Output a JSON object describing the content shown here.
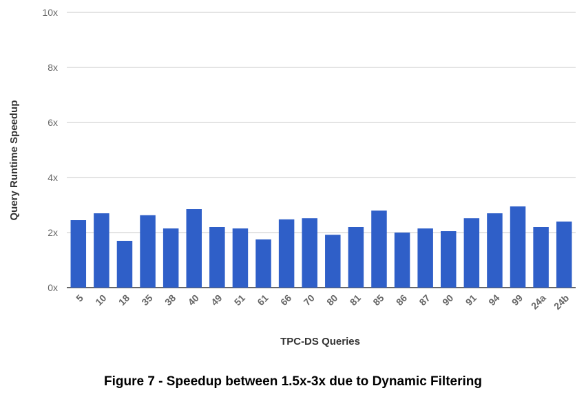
{
  "caption": "Figure 7 - Speedup between 1.5x-3x due to Dynamic Filtering",
  "chart_data": {
    "type": "bar",
    "title": "",
    "xlabel": "TPC-DS Queries",
    "ylabel": "Query Runtime Speedup",
    "ylim": [
      0,
      10
    ],
    "yticks": [
      0,
      2,
      4,
      6,
      8,
      10
    ],
    "ytick_labels": [
      "0x",
      "2x",
      "4x",
      "6x",
      "8x",
      "10x"
    ],
    "grid": true,
    "legend": "none",
    "bar_color": "#2f5fc8",
    "categories": [
      "5",
      "10",
      "18",
      "35",
      "38",
      "40",
      "49",
      "51",
      "61",
      "66",
      "70",
      "80",
      "81",
      "85",
      "86",
      "87",
      "90",
      "91",
      "94",
      "99",
      "24a",
      "24b"
    ],
    "values": [
      2.45,
      2.7,
      1.7,
      2.63,
      2.15,
      2.85,
      2.2,
      2.15,
      1.75,
      2.48,
      2.52,
      1.92,
      2.2,
      2.8,
      2.0,
      2.15,
      2.05,
      2.52,
      2.7,
      2.95,
      2.2,
      2.4
    ]
  }
}
